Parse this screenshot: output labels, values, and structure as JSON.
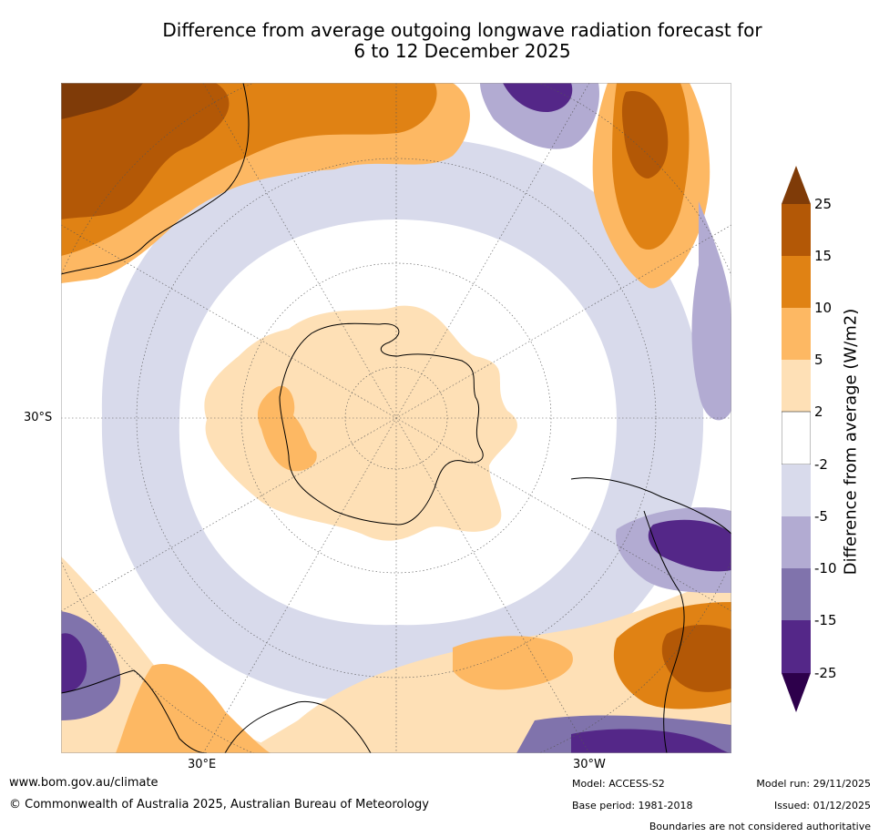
{
  "title_line1": "Difference from average outgoing longwave radiation forecast for",
  "title_line2": "6 to 12 December 2025",
  "axis_labels": {
    "lat_30s": "30°S",
    "lon_30e": "30°E",
    "lon_30w": "30°W"
  },
  "colorbar": {
    "title": "Difference from average (W/m2)",
    "ticks": [
      "25",
      "15",
      "10",
      "5",
      "2",
      "-2",
      "-5",
      "-10",
      "-15",
      "-25"
    ],
    "colors": {
      "over": "#7f3b08",
      "b15_25": "#b35806",
      "b10_15": "#e08214",
      "b5_10": "#fdb863",
      "b2_5": "#fee0b6",
      "neutral": "#ffffff",
      "m2_5": "#d8daeb",
      "m5_10": "#b2abd2",
      "m10_15": "#8073ac",
      "m15_25": "#542788",
      "under": "#2d004b"
    }
  },
  "footer": {
    "website": "www.bom.gov.au/climate",
    "copyright": "© Commonwealth of Australia 2025, Australian Bureau of Meteorology",
    "model": "Model: ACCESS-S2",
    "base_period": "Base period: 1981-2018",
    "model_run": "Model run: 29/11/2025",
    "issued": "Issued: 01/12/2025",
    "disclaimer": "Boundaries are not considered authoritative"
  }
}
